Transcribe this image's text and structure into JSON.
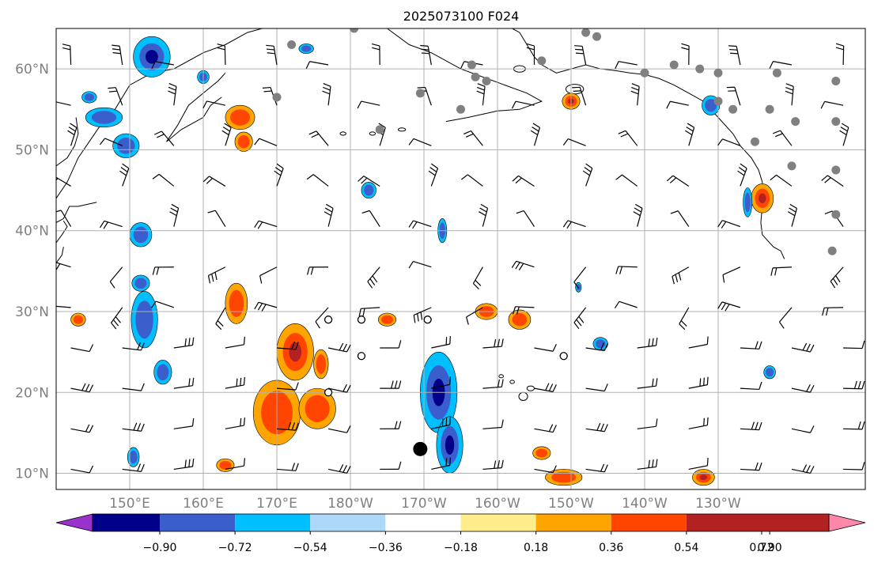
{
  "title": "2025073100 F024",
  "map": {
    "lon_range": [
      140,
      250
    ],
    "lat_range": [
      8,
      65
    ],
    "grid": true,
    "lat_ticks": [
      {
        "value": 10,
        "label": "10°N"
      },
      {
        "value": 20,
        "label": "20°N"
      },
      {
        "value": 30,
        "label": "30°N"
      },
      {
        "value": 40,
        "label": "40°N"
      },
      {
        "value": 50,
        "label": "50°N"
      },
      {
        "value": 60,
        "label": "60°N"
      }
    ],
    "lon_ticks": [
      {
        "value": 150,
        "label": "150°E"
      },
      {
        "value": 160,
        "label": "160°E"
      },
      {
        "value": 170,
        "label": "170°E"
      },
      {
        "value": 180,
        "label": "180°W"
      },
      {
        "value": 190,
        "label": "170°W"
      },
      {
        "value": 200,
        "label": "160°W"
      },
      {
        "value": 210,
        "label": "150°W"
      },
      {
        "value": 220,
        "label": "140°W"
      },
      {
        "value": 230,
        "label": "130°W"
      }
    ],
    "label_color": "#7f7f7f",
    "grid_color": "#b0b0b0"
  },
  "colorbar": {
    "extend": "both",
    "ticks": [
      "−0.90",
      "−0.72",
      "−0.54",
      "−0.36",
      "−0.18",
      "0.18",
      "0.36",
      "0.54",
      "0.72",
      "0.90"
    ],
    "colors": [
      "#9932cc",
      "#00008b",
      "#3a5fcd",
      "#00bfff",
      "#add8f7",
      "#ffffff",
      "#ffec8b",
      "#ffa500",
      "#ff4500",
      "#b22222",
      "#ff88aa"
    ]
  },
  "contours": {
    "positive": [
      {
        "lon": 172.5,
        "lat": 25,
        "rx": 2.5,
        "ry": 3.5,
        "level": 3
      },
      {
        "lon": 170,
        "lat": 17.5,
        "rx": 3.2,
        "ry": 4,
        "level": 2
      },
      {
        "lon": 175.5,
        "lat": 18,
        "rx": 2.5,
        "ry": 2.5,
        "level": 2
      },
      {
        "lon": 164.5,
        "lat": 31,
        "rx": 1.5,
        "ry": 2.5,
        "level": 2
      },
      {
        "lon": 185,
        "lat": 29,
        "rx": 1.2,
        "ry": 0.8,
        "level": 2
      },
      {
        "lon": 198.5,
        "lat": 30,
        "rx": 1.5,
        "ry": 1,
        "level": 2
      },
      {
        "lon": 203,
        "lat": 29,
        "rx": 1.5,
        "ry": 1.2,
        "level": 2
      },
      {
        "lon": 165,
        "lat": 54,
        "rx": 2,
        "ry": 1.5,
        "level": 2
      },
      {
        "lon": 165.5,
        "lat": 51,
        "rx": 1.2,
        "ry": 1.2,
        "level": 2
      },
      {
        "lon": 210,
        "lat": 56,
        "rx": 1.2,
        "ry": 1,
        "level": 3
      },
      {
        "lon": 236,
        "lat": 44,
        "rx": 1.5,
        "ry": 1.8,
        "level": 3
      },
      {
        "lon": 209,
        "lat": 9.5,
        "rx": 2.5,
        "ry": 1,
        "level": 2
      },
      {
        "lon": 228,
        "lat": 9.5,
        "rx": 1.5,
        "ry": 1,
        "level": 3
      },
      {
        "lon": 206,
        "lat": 12.5,
        "rx": 1.2,
        "ry": 0.8,
        "level": 2
      },
      {
        "lon": 163,
        "lat": 11,
        "rx": 1.2,
        "ry": 0.8,
        "level": 2
      },
      {
        "lon": 176,
        "lat": 23.5,
        "rx": 1,
        "ry": 1.8,
        "level": 2
      },
      {
        "lon": 143,
        "lat": 29,
        "rx": 1,
        "ry": 0.8,
        "level": 2
      }
    ],
    "negative": [
      {
        "lon": 192,
        "lat": 20,
        "rx": 2.5,
        "ry": 5,
        "level": 3
      },
      {
        "lon": 193.5,
        "lat": 13.5,
        "rx": 1.8,
        "ry": 3.5,
        "level": 3
      },
      {
        "lon": 152,
        "lat": 29,
        "rx": 1.8,
        "ry": 3.5,
        "level": 2
      },
      {
        "lon": 154.5,
        "lat": 22.5,
        "rx": 1.2,
        "ry": 1.5,
        "level": 2
      },
      {
        "lon": 153,
        "lat": 61.5,
        "rx": 2.5,
        "ry": 2.5,
        "level": 3
      },
      {
        "lon": 146.5,
        "lat": 54,
        "rx": 2.5,
        "ry": 1.2,
        "level": 2
      },
      {
        "lon": 149.5,
        "lat": 50.5,
        "rx": 1.8,
        "ry": 1.5,
        "level": 2
      },
      {
        "lon": 151.5,
        "lat": 39.5,
        "rx": 1.5,
        "ry": 1.5,
        "level": 2
      },
      {
        "lon": 151.5,
        "lat": 33.5,
        "rx": 1.2,
        "ry": 1,
        "level": 2
      },
      {
        "lon": 182.5,
        "lat": 45,
        "rx": 1,
        "ry": 1,
        "level": 2
      },
      {
        "lon": 192.5,
        "lat": 40,
        "rx": 0.6,
        "ry": 1.5,
        "level": 2
      },
      {
        "lon": 229,
        "lat": 55.5,
        "rx": 1.2,
        "ry": 1.2,
        "level": 2
      },
      {
        "lon": 234,
        "lat": 43.5,
        "rx": 0.6,
        "ry": 1.8,
        "level": 2
      },
      {
        "lon": 237,
        "lat": 22.5,
        "rx": 0.8,
        "ry": 0.8,
        "level": 2
      },
      {
        "lon": 214,
        "lat": 26,
        "rx": 1,
        "ry": 0.8,
        "level": 2
      },
      {
        "lon": 144.5,
        "lat": 56.5,
        "rx": 1,
        "ry": 0.7,
        "level": 2
      },
      {
        "lon": 211,
        "lat": 33,
        "rx": 0.4,
        "ry": 0.6,
        "level": 2
      },
      {
        "lon": 150.5,
        "lat": 12,
        "rx": 0.8,
        "ry": 1.2,
        "level": 2
      },
      {
        "lon": 174,
        "lat": 62.5,
        "rx": 1,
        "ry": 0.6,
        "level": 2
      },
      {
        "lon": 160,
        "lat": 59,
        "rx": 0.8,
        "ry": 0.8,
        "level": 2
      }
    ]
  },
  "points": {
    "gray": [
      [
        170,
        56.5
      ],
      [
        172,
        63
      ],
      [
        180.5,
        65
      ],
      [
        184,
        52.5
      ],
      [
        189.5,
        57
      ],
      [
        195,
        55
      ],
      [
        196.5,
        60.5
      ],
      [
        197,
        59
      ],
      [
        198.5,
        58.5
      ],
      [
        206,
        61
      ],
      [
        212,
        64.5
      ],
      [
        213.5,
        64
      ],
      [
        220,
        59.5
      ],
      [
        224,
        60.5
      ],
      [
        227.5,
        60
      ],
      [
        230,
        59.5
      ],
      [
        237,
        55
      ],
      [
        238,
        59.5
      ],
      [
        240,
        48
      ],
      [
        240.5,
        53.5
      ],
      [
        246,
        58.5
      ],
      [
        246,
        53.5
      ],
      [
        246,
        47.5
      ],
      [
        246,
        42
      ],
      [
        245.5,
        37.5
      ],
      [
        230,
        56
      ],
      [
        232,
        55
      ],
      [
        235,
        51
      ]
    ],
    "open": [
      [
        177,
        29
      ],
      [
        181.5,
        29
      ],
      [
        181.5,
        24.5
      ],
      [
        177,
        20
      ],
      [
        190.5,
        29
      ],
      [
        209,
        24.5
      ]
    ],
    "black_large": [
      [
        189.5,
        13
      ]
    ]
  },
  "barbs": {
    "lon_start": 142,
    "lon_step": 7,
    "lat_start": 10.5,
    "lat_step": 5
  }
}
